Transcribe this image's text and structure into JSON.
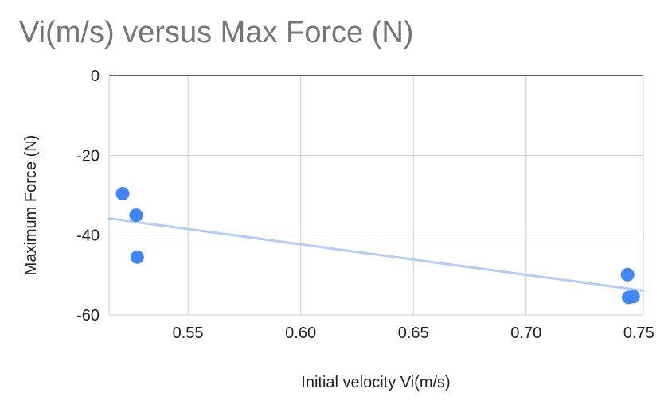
{
  "chart_data": {
    "type": "scatter",
    "title": "Vi(m/s) versus Max Force (N)",
    "xlabel": "Initial velocity Vi(m/s)",
    "ylabel": "Maximum Force (N)",
    "xlim": [
      0.515,
      0.752
    ],
    "ylim": [
      -60,
      0
    ],
    "xticks": [
      0.55,
      0.6,
      0.65,
      0.7,
      0.75
    ],
    "xtick_labels": [
      "0.55",
      "0.60",
      "0.65",
      "0.70",
      "0.75"
    ],
    "yticks": [
      0,
      -20,
      -40,
      -60
    ],
    "ytick_labels": [
      "0",
      "-20",
      "-40",
      "-60"
    ],
    "grid": true,
    "legend": "none",
    "points": [
      {
        "x": 0.521,
        "y": -29.6
      },
      {
        "x": 0.527,
        "y": -35.0
      },
      {
        "x": 0.5275,
        "y": -45.5
      },
      {
        "x": 0.745,
        "y": -49.9
      },
      {
        "x": 0.7455,
        "y": -55.6
      },
      {
        "x": 0.7475,
        "y": -55.4
      }
    ],
    "trendline": {
      "x": [
        0.515,
        0.752
      ],
      "y": [
        -35.8,
        -53.9
      ]
    },
    "colors": {
      "points": "#4285f4",
      "trendline": "#b3cdf7",
      "grid": "#cccccc",
      "zero_line": "#333333"
    }
  }
}
